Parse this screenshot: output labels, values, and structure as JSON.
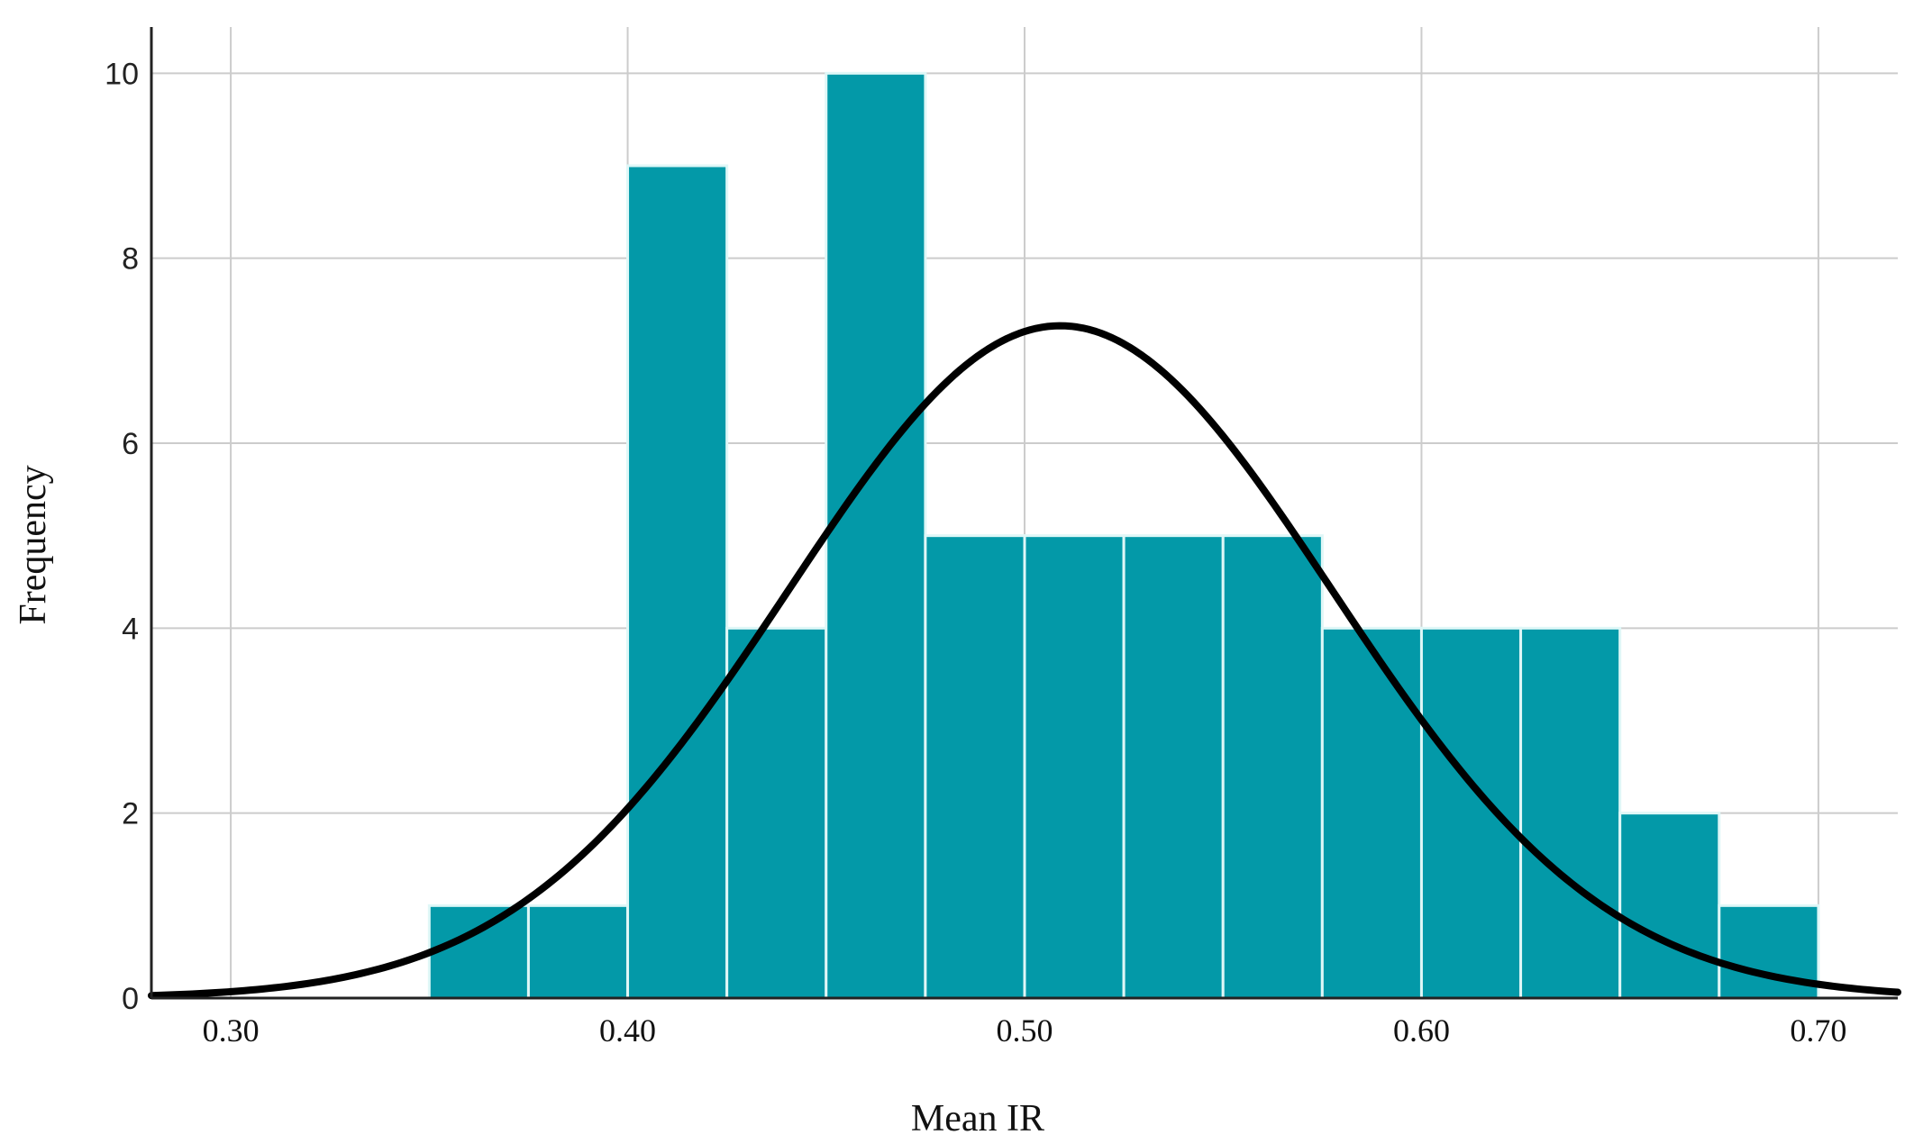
{
  "chart_data": {
    "type": "bar",
    "subtype": "histogram",
    "title": "",
    "xlabel": "Mean IR",
    "ylabel": "Frequency",
    "xlim": [
      0.28,
      0.72
    ],
    "ylim": [
      0,
      10.5
    ],
    "x_ticks": [
      0.3,
      0.4,
      0.5,
      0.6,
      0.7
    ],
    "x_tick_labels": [
      "0.30",
      "0.40",
      "0.50",
      "0.60",
      "0.70"
    ],
    "y_ticks": [
      0,
      2,
      4,
      6,
      8,
      10
    ],
    "y_tick_labels": [
      "0",
      "2",
      "4",
      "6",
      "8",
      "10"
    ],
    "grid": true,
    "bar_color": "#0399a8",
    "bar_edge_color": "#dff7f7",
    "bins": [
      {
        "start": 0.35,
        "end": 0.375,
        "count": 1
      },
      {
        "start": 0.375,
        "end": 0.4,
        "count": 1
      },
      {
        "start": 0.4,
        "end": 0.425,
        "count": 9
      },
      {
        "start": 0.425,
        "end": 0.45,
        "count": 4
      },
      {
        "start": 0.45,
        "end": 0.475,
        "count": 10
      },
      {
        "start": 0.475,
        "end": 0.5,
        "count": 5
      },
      {
        "start": 0.5,
        "end": 0.525,
        "count": 5
      },
      {
        "start": 0.525,
        "end": 0.55,
        "count": 5
      },
      {
        "start": 0.55,
        "end": 0.575,
        "count": 5
      },
      {
        "start": 0.575,
        "end": 0.6,
        "count": 4
      },
      {
        "start": 0.6,
        "end": 0.625,
        "count": 4
      },
      {
        "start": 0.625,
        "end": 0.65,
        "count": 4
      },
      {
        "start": 0.65,
        "end": 0.675,
        "count": 2
      },
      {
        "start": 0.675,
        "end": 0.7,
        "count": 1
      }
    ],
    "normal_curve": {
      "mean": 0.509,
      "sd": 0.0685,
      "peak": 7.27,
      "color": "#000000"
    }
  }
}
